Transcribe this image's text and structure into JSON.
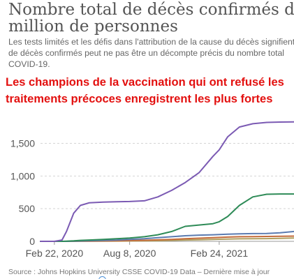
{
  "title": {
    "line1": "Nombre total de décès confirmés dus à",
    "line2": "million de personnes"
  },
  "subtitle": {
    "line1": "Les tests limités et les défis dans l'attribution de la cause du décès signifient",
    "line2": "de décès confirmés peut ne pas être un décompte précis du nombre total",
    "line3": "COVID-19."
  },
  "overlay": {
    "line1": "Les champions de la vaccination qui ont refusé les",
    "line2": "traitements précoces enregistrent les plus fortes"
  },
  "source": "Source : Johns Hopkins University CSSE COVID-19 Data – Dernière mise à jour",
  "chart_data": {
    "type": "line",
    "x": [
      "2020-01-22",
      "2020-02-22",
      "2020-03-10",
      "2020-03-20",
      "2020-04-05",
      "2020-04-20",
      "2020-05-10",
      "2020-06-10",
      "2020-07-10",
      "2020-08-08",
      "2020-09-10",
      "2020-10-10",
      "2020-11-10",
      "2020-12-10",
      "2021-01-10",
      "2021-02-10",
      "2021-02-24",
      "2021-03-15",
      "2021-04-10",
      "2021-05-10",
      "2021-06-10",
      "2021-07-10",
      "2021-08-10"
    ],
    "series": [
      {
        "color": "#7b5ab3",
        "values": [
          0,
          0,
          20,
          150,
          430,
          550,
          590,
          600,
          605,
          610,
          620,
          680,
          780,
          900,
          1050,
          1300,
          1400,
          1600,
          1750,
          1800,
          1820,
          1825,
          1828
        ]
      },
      {
        "color": "#2e8b57",
        "values": [
          0,
          0,
          0,
          2,
          8,
          15,
          20,
          30,
          40,
          50,
          70,
          100,
          150,
          230,
          250,
          270,
          300,
          380,
          550,
          680,
          720,
          725,
          725
        ]
      },
      {
        "color": "#5b7bb0",
        "values": [
          0,
          0,
          0,
          0,
          2,
          5,
          10,
          15,
          20,
          30,
          40,
          55,
          70,
          85,
          95,
          100,
          105,
          110,
          115,
          118,
          120,
          130,
          150
        ]
      },
      {
        "color": "#c46c3b",
        "values": [
          0,
          0,
          0,
          0,
          1,
          2,
          3,
          5,
          8,
          12,
          16,
          22,
          30,
          40,
          48,
          55,
          60,
          65,
          70,
          73,
          75,
          78,
          80
        ]
      },
      {
        "color": "#b0a060",
        "values": [
          0,
          0,
          0,
          0,
          0,
          1,
          2,
          3,
          4,
          5,
          7,
          10,
          15,
          20,
          25,
          30,
          32,
          35,
          38,
          40,
          42,
          45,
          50
        ]
      }
    ],
    "y_ticks": [
      "0",
      "500",
      "1,000",
      "1,500"
    ],
    "y_tick_values": [
      0,
      500,
      1000,
      1500
    ],
    "x_ticks": [
      "Feb 22, 2020",
      "Aug 8, 2020",
      "Feb 24, 2021"
    ],
    "x_tick_dates": [
      "2020-02-22",
      "2020-08-08",
      "2021-02-24"
    ],
    "ylim": [
      0,
      1900
    ],
    "xlim": [
      "2020-01-22",
      "2021-08-10"
    ],
    "grid": true,
    "gridline_style": "dashed"
  }
}
